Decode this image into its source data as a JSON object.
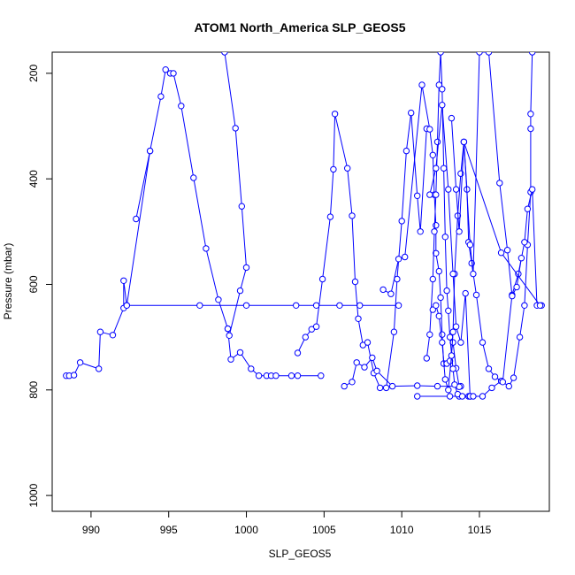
{
  "chart_data": {
    "type": "line",
    "title": "ATOM1 North_America SLP_GEOS5",
    "xlabel": "SLP_GEOS5",
    "ylabel": "Pressure (mbar)",
    "xlim": [
      987.5,
      1019.5
    ],
    "ylim": [
      1030,
      160
    ],
    "y_inverted": true,
    "x_ticks": [
      990,
      995,
      1000,
      1005,
      1010,
      1015
    ],
    "y_ticks": [
      200,
      400,
      600,
      800,
      1000
    ],
    "grid": false,
    "legend": "none",
    "color": "#0000ff",
    "series": [
      {
        "points": [
          [
            988.4,
            773
          ],
          [
            988.6,
            773
          ],
          [
            988.9,
            772
          ],
          [
            989.3,
            748
          ],
          [
            990.5,
            760
          ],
          [
            990.6,
            690
          ],
          [
            991.4,
            696
          ],
          [
            992.1,
            645
          ],
          [
            992.1,
            593
          ],
          [
            992.3,
            640
          ],
          [
            993.8,
            347
          ],
          [
            992.9,
            476
          ],
          [
            993.8,
            347
          ],
          [
            994.5,
            244
          ],
          [
            994.8,
            193
          ],
          [
            995.1,
            200
          ],
          [
            995.3,
            200
          ],
          [
            995.8,
            262
          ],
          [
            996.6,
            398
          ],
          [
            997.4,
            532
          ],
          [
            998.2,
            629
          ],
          [
            998.8,
            684
          ],
          [
            999.0,
            742
          ],
          [
            999.6,
            729
          ],
          [
            1000.3,
            760
          ],
          [
            1000.8,
            773
          ],
          [
            1001.3,
            773
          ],
          [
            1001.6,
            773
          ],
          [
            1001.9,
            773
          ],
          [
            1002.9,
            773
          ],
          [
            1003.3,
            773
          ],
          [
            1004.8,
            773
          ]
        ]
      },
      {
        "points": [
          [
            992.3,
            640
          ],
          [
            997.0,
            640
          ],
          [
            1000.0,
            640
          ],
          [
            1003.2,
            640
          ],
          [
            1004.5,
            640
          ],
          [
            1006.0,
            640
          ],
          [
            1007.3,
            640
          ],
          [
            1009.8,
            640
          ]
        ]
      },
      {
        "points": [
          [
            998.6,
            160
          ],
          [
            999.3,
            304
          ],
          [
            999.7,
            452
          ],
          [
            1000.0,
            568
          ],
          [
            999.6,
            612
          ],
          [
            998.9,
            697
          ],
          [
            998.8,
            684
          ]
        ]
      },
      {
        "points": [
          [
            1003.3,
            730
          ],
          [
            1003.8,
            700
          ],
          [
            1004.2,
            685
          ],
          [
            1004.5,
            680
          ],
          [
            1004.9,
            590
          ],
          [
            1005.4,
            472
          ],
          [
            1005.6,
            382
          ],
          [
            1005.7,
            277
          ],
          [
            1006.5,
            380
          ],
          [
            1006.8,
            470
          ],
          [
            1007.0,
            595
          ],
          [
            1007.2,
            665
          ],
          [
            1007.5,
            715
          ],
          [
            1007.8,
            710
          ],
          [
            1008.2,
            768
          ],
          [
            1008.6,
            796
          ],
          [
            1009.0,
            796
          ],
          [
            1009.5,
            690
          ],
          [
            1009.7,
            590
          ],
          [
            1010.0,
            480
          ],
          [
            1010.3,
            347
          ],
          [
            1010.6,
            275
          ],
          [
            1011.0,
            432
          ],
          [
            1011.2,
            500
          ],
          [
            1011.6,
            305
          ]
        ]
      },
      {
        "points": [
          [
            1006.3,
            793
          ],
          [
            1006.8,
            785
          ],
          [
            1007.1,
            748
          ],
          [
            1007.6,
            757
          ],
          [
            1008.1,
            739
          ],
          [
            1008.4,
            764
          ],
          [
            1009.4,
            793
          ],
          [
            1011.0,
            792
          ],
          [
            1012.3,
            793
          ],
          [
            1013.8,
            793
          ]
        ]
      },
      {
        "points": [
          [
            1008.8,
            610
          ],
          [
            1009.3,
            618
          ],
          [
            1009.8,
            552
          ],
          [
            1010.2,
            548
          ],
          [
            1011.3,
            222
          ],
          [
            1011.8,
            306
          ],
          [
            1012.0,
            355
          ],
          [
            1012.1,
            430
          ],
          [
            1012.2,
            488
          ],
          [
            1012.2,
            541
          ],
          [
            1012.4,
            575
          ],
          [
            1012.5,
            625
          ],
          [
            1012.6,
            695
          ],
          [
            1012.7,
            750
          ],
          [
            1012.9,
            750
          ],
          [
            1013.1,
            745
          ],
          [
            1013.3,
            710
          ],
          [
            1013.5,
            759
          ],
          [
            1013.7,
            794
          ]
        ]
      },
      {
        "points": [
          [
            1011.0,
            812
          ],
          [
            1013.1,
            812
          ],
          [
            1013.7,
            812
          ],
          [
            1014.3,
            812
          ],
          [
            1015.2,
            812
          ],
          [
            1015.8,
            796
          ],
          [
            1016.4,
            783
          ],
          [
            1016.9,
            793
          ],
          [
            1017.2,
            777
          ],
          [
            1017.6,
            700
          ],
          [
            1017.9,
            640
          ],
          [
            1018.1,
            525
          ],
          [
            1018.3,
            425
          ],
          [
            1018.3,
            305
          ],
          [
            1018.3,
            277
          ],
          [
            1018.4,
            160
          ]
        ]
      },
      {
        "points": [
          [
            1011.6,
            740
          ],
          [
            1011.8,
            695
          ],
          [
            1012.0,
            590
          ],
          [
            1012.1,
            500
          ],
          [
            1012.2,
            430
          ],
          [
            1012.3,
            330
          ],
          [
            1012.4,
            222
          ],
          [
            1012.5,
            160
          ],
          [
            1012.6,
            230
          ],
          [
            1012.7,
            380
          ],
          [
            1012.8,
            510
          ],
          [
            1012.9,
            612
          ],
          [
            1013.0,
            650
          ],
          [
            1013.1,
            700
          ],
          [
            1013.3,
            760
          ],
          [
            1013.4,
            790
          ],
          [
            1013.6,
            808
          ],
          [
            1013.9,
            812
          ],
          [
            1014.4,
            812
          ]
        ]
      },
      {
        "points": [
          [
            1012.0,
            648
          ],
          [
            1012.2,
            640
          ],
          [
            1012.4,
            660
          ],
          [
            1012.6,
            710
          ],
          [
            1012.8,
            780
          ],
          [
            1013.0,
            800
          ],
          [
            1013.2,
            735
          ],
          [
            1013.3,
            690
          ],
          [
            1013.4,
            580
          ],
          [
            1013.6,
            470
          ],
          [
            1013.8,
            390
          ],
          [
            1014.0,
            330
          ],
          [
            1014.2,
            420
          ],
          [
            1014.3,
            520
          ],
          [
            1014.5,
            560
          ],
          [
            1014.8,
            620
          ],
          [
            1015.2,
            710
          ],
          [
            1015.6,
            760
          ],
          [
            1016.0,
            775
          ],
          [
            1016.5,
            785
          ],
          [
            1017.1,
            620
          ],
          [
            1017.5,
            580
          ],
          [
            1017.9,
            520
          ],
          [
            1018.1,
            457
          ],
          [
            1018.4,
            420
          ],
          [
            1018.7,
            640
          ],
          [
            1019.0,
            640
          ]
        ]
      },
      {
        "points": [
          [
            1014.0,
            330
          ],
          [
            1014.4,
            525
          ],
          [
            1014.6,
            580
          ],
          [
            1015.0,
            160
          ],
          [
            1015.6,
            160
          ],
          [
            1016.3,
            408
          ],
          [
            1016.8,
            535
          ],
          [
            1017.1,
            622
          ],
          [
            1017.4,
            605
          ],
          [
            1017.7,
            550
          ]
        ]
      },
      {
        "points": [
          [
            1013.2,
            285
          ],
          [
            1013.5,
            420
          ],
          [
            1013.7,
            500
          ],
          [
            1014.0,
            330
          ],
          [
            1016.4,
            540
          ],
          [
            1018.9,
            640
          ]
        ]
      },
      {
        "points": [
          [
            1011.8,
            430
          ],
          [
            1012.2,
            380
          ],
          [
            1012.6,
            260
          ],
          [
            1013.0,
            420
          ],
          [
            1013.3,
            580
          ],
          [
            1013.5,
            680
          ],
          [
            1013.8,
            710
          ],
          [
            1014.1,
            617
          ],
          [
            1014.4,
            812
          ],
          [
            1014.6,
            812
          ]
        ]
      }
    ]
  }
}
